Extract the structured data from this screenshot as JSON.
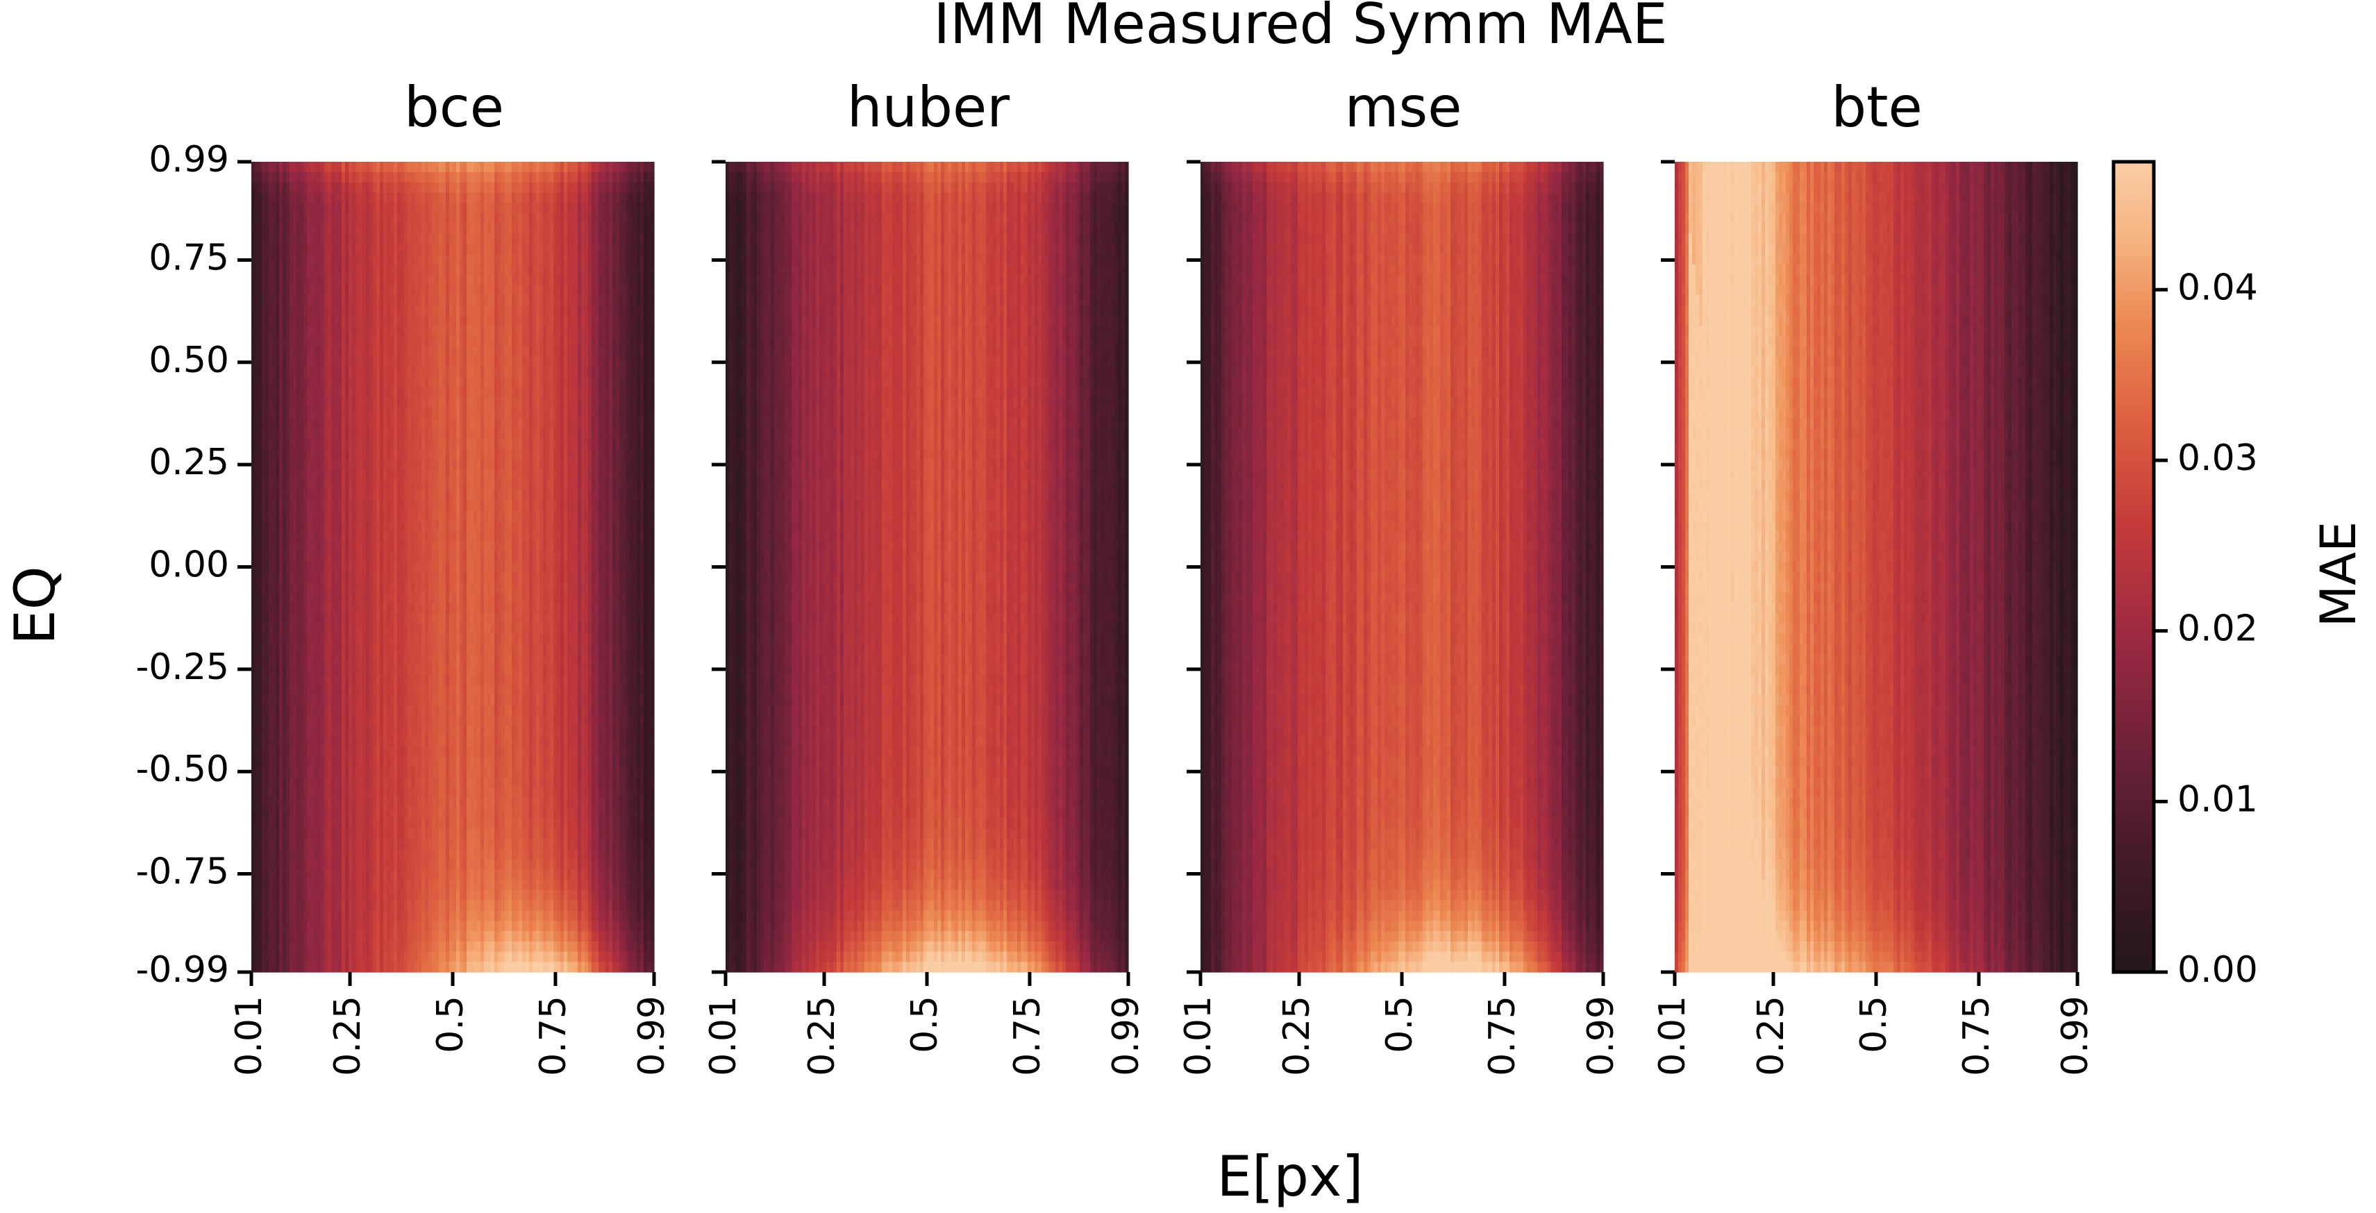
{
  "chart_data": {
    "type": "heatmap",
    "title": "IMM Measured Symm MAE",
    "xlabel": "E[px]",
    "ylabel": "EQ",
    "x_ticks": [
      "0.01",
      "0.25",
      "0.5",
      "0.75",
      "0.99"
    ],
    "y_ticks": [
      "0.99",
      "0.75",
      "0.50",
      "0.25",
      "0.00",
      "-0.25",
      "-0.50",
      "-0.75",
      "-0.99"
    ],
    "x_range": [
      0.01,
      0.99
    ],
    "y_range": [
      -0.99,
      0.99
    ],
    "colorbar": {
      "label": "MAE",
      "ticks": [
        "0.00",
        "0.01",
        "0.02",
        "0.03",
        "0.04"
      ],
      "range": [
        0,
        0.0475
      ]
    },
    "panels": [
      {
        "name": "bce",
        "profile": [
          [
            0.01,
            0.004
          ],
          [
            0.05,
            0.008
          ],
          [
            0.1,
            0.013
          ],
          [
            0.15,
            0.018
          ],
          [
            0.2,
            0.021
          ],
          [
            0.3,
            0.025
          ],
          [
            0.4,
            0.029
          ],
          [
            0.5,
            0.031
          ],
          [
            0.6,
            0.031
          ],
          [
            0.7,
            0.029
          ],
          [
            0.8,
            0.024
          ],
          [
            0.85,
            0.018
          ],
          [
            0.9,
            0.012
          ],
          [
            0.95,
            0.007
          ],
          [
            0.99,
            0.004
          ]
        ],
        "top_boost": 0.006,
        "bottom_boost": 0.019,
        "bottom_center": 0.72,
        "bottom_width": 0.24
      },
      {
        "name": "huber",
        "profile": [
          [
            0.01,
            0.003
          ],
          [
            0.05,
            0.006
          ],
          [
            0.1,
            0.01
          ],
          [
            0.15,
            0.014
          ],
          [
            0.2,
            0.018
          ],
          [
            0.3,
            0.022
          ],
          [
            0.4,
            0.026
          ],
          [
            0.5,
            0.029
          ],
          [
            0.6,
            0.029
          ],
          [
            0.7,
            0.027
          ],
          [
            0.8,
            0.022
          ],
          [
            0.85,
            0.016
          ],
          [
            0.9,
            0.01
          ],
          [
            0.95,
            0.006
          ],
          [
            0.99,
            0.004
          ]
        ],
        "top_boost": 0.004,
        "bottom_boost": 0.02,
        "bottom_center": 0.58,
        "bottom_width": 0.32
      },
      {
        "name": "mse",
        "profile": [
          [
            0.01,
            0.005
          ],
          [
            0.05,
            0.009
          ],
          [
            0.1,
            0.014
          ],
          [
            0.15,
            0.019
          ],
          [
            0.2,
            0.022
          ],
          [
            0.3,
            0.026
          ],
          [
            0.4,
            0.029
          ],
          [
            0.5,
            0.031
          ],
          [
            0.6,
            0.031
          ],
          [
            0.7,
            0.029
          ],
          [
            0.8,
            0.025
          ],
          [
            0.85,
            0.019
          ],
          [
            0.9,
            0.013
          ],
          [
            0.95,
            0.008
          ],
          [
            0.99,
            0.005
          ]
        ],
        "top_boost": 0.004,
        "bottom_boost": 0.019,
        "bottom_center": 0.65,
        "bottom_width": 0.28
      },
      {
        "name": "bte",
        "profile": [
          [
            0.01,
            0.018
          ],
          [
            0.05,
            0.044
          ],
          [
            0.1,
            0.048
          ],
          [
            0.2,
            0.047
          ],
          [
            0.25,
            0.043
          ],
          [
            0.3,
            0.036
          ],
          [
            0.4,
            0.032
          ],
          [
            0.5,
            0.028
          ],
          [
            0.6,
            0.024
          ],
          [
            0.7,
            0.019
          ],
          [
            0.8,
            0.013
          ],
          [
            0.9,
            0.007
          ],
          [
            0.95,
            0.004
          ],
          [
            0.99,
            0.003
          ]
        ],
        "top_boost": 0.0,
        "bottom_boost": 0.01,
        "bottom_center": 0.35,
        "bottom_width": 0.4
      }
    ]
  }
}
